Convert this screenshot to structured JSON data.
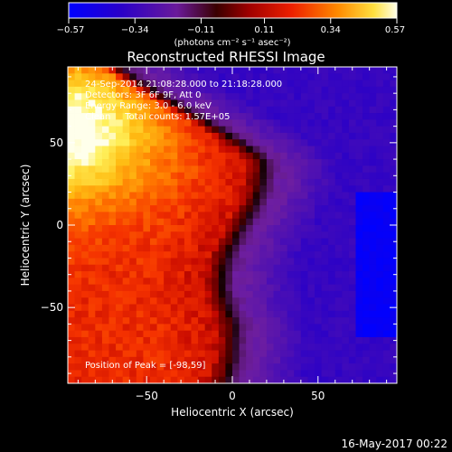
{
  "colorbar": {
    "ticks": [
      -0.57,
      -0.34,
      -0.11,
      0.11,
      0.34,
      0.57
    ],
    "tick_labels": [
      "-0.57",
      "-0.34",
      "-0.11",
      "0.11",
      "0.34",
      "0.57"
    ],
    "units": "(photons cm⁻² s⁻¹ asec⁻²)"
  },
  "chart_data": {
    "type": "heatmap",
    "title": "Reconstructed RHESSI Image",
    "xlabel": "Heliocentric X (arcsec)",
    "ylabel": "Heliocentric Y (arcsec)",
    "xlim": [
      -96,
      96
    ],
    "ylim": [
      -96,
      96
    ],
    "x_ticks": [
      -50,
      0,
      50
    ],
    "y_ticks": [
      -50,
      0,
      50
    ],
    "x_tick_labels": [
      "-50",
      "0",
      "50"
    ],
    "y_tick_labels": [
      "-50",
      "0",
      "50"
    ],
    "value_range": [
      -0.57,
      0.57
    ],
    "peak_position": [
      -98,
      59
    ],
    "annotations": [
      "24-Sep-2014 21:08:28.000 to 21:18:28.000",
      "Detectors: 3F 6F 9F, Att 0",
      "Energy Range: 3.0 - 6.0 keV",
      "Clean     Total counts: 1.57E+05"
    ],
    "peak_label": "Position of Peak = [-98,59]"
  },
  "footer": {
    "timestamp": "16-May-2017 00:22"
  }
}
